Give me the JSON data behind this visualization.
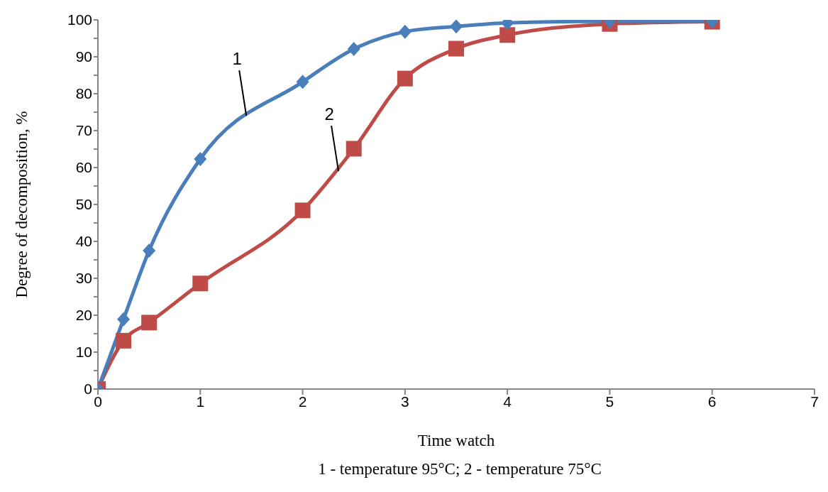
{
  "chart_data": {
    "type": "line",
    "xlabel": "Time watch",
    "ylabel": "Degree of decomposition, %",
    "annotations": [
      {
        "text": "1",
        "x": 1.45,
        "y": 74
      },
      {
        "text": "2",
        "x": 2.35,
        "y": 59
      },
      "1 - temperature 95°C; 2 - temperature 75°C"
    ],
    "series": [
      {
        "color": "#4a7ebb",
        "marker": "diamond",
        "x": [
          0,
          0.25,
          0.5,
          1,
          2,
          2.5,
          3,
          3.5,
          4,
          5,
          6
        ],
        "values": [
          0,
          18.9,
          37.5,
          62.3,
          83.2,
          92.1,
          96.8,
          98.2,
          99.2,
          99.6,
          99.6
        ]
      },
      {
        "color": "#be4b48",
        "marker": "square",
        "x": [
          0,
          0.25,
          0.5,
          1,
          2,
          2.5,
          3,
          3.5,
          4,
          5,
          6
        ],
        "values": [
          0,
          13.1,
          18,
          28.6,
          48.4,
          65.1,
          84.1,
          92.2,
          95.9,
          98.9,
          99.5
        ]
      }
    ],
    "xlim": [
      0,
      7
    ],
    "xticks": [
      0,
      1,
      2,
      3,
      4,
      5,
      6,
      7
    ],
    "ylim": [
      0,
      100
    ],
    "yticks": [
      0,
      {
        "value": 5,
        "label": null
      },
      10,
      {
        "value": 15,
        "label": null
      },
      20,
      {
        "value": 25,
        "label": null
      },
      30,
      {
        "value": 35,
        "label": null
      },
      40,
      {
        "value": 45,
        "label": null
      },
      50,
      {
        "value": 55,
        "label": null
      },
      60,
      {
        "value": 65,
        "label": null
      },
      70,
      {
        "value": 75,
        "label": null
      },
      80,
      {
        "value": 85,
        "label": null
      },
      90,
      {
        "value": 95,
        "label": null
      },
      100
    ],
    "grid": false,
    "legend": false,
    "line_style": "solid"
  }
}
